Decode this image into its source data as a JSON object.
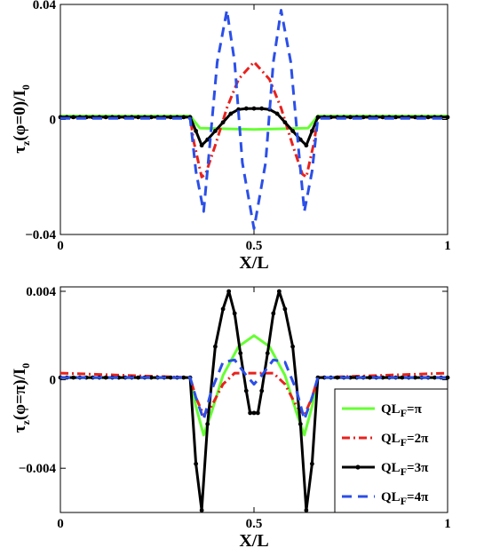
{
  "chart_data": [
    {
      "type": "line",
      "panel": "top",
      "ylabel": {
        "main": "τ",
        "sub1": "z",
        "mid": "(φ=0)/I",
        "sub2": "0"
      },
      "xlabel": "X/L",
      "xlim": [
        0,
        1
      ],
      "ylim": [
        -0.04,
        0.04
      ],
      "xticks": [
        0,
        0.5,
        1
      ],
      "xtick_labels": [
        "0",
        "0.5",
        "1"
      ],
      "yticks": [
        -0.04,
        0,
        0.04
      ],
      "ytick_labels": [
        "−0.04",
        "0",
        "0.04"
      ],
      "grid": false,
      "series": [
        {
          "key": "pi",
          "color": "#66ff33",
          "style": "solid",
          "marker": false,
          "points": [
            [
              0,
              0.0012
            ],
            [
              0.335,
              0.0012
            ],
            [
              0.36,
              -0.003
            ],
            [
              0.5,
              -0.0035
            ],
            [
              0.64,
              -0.003
            ],
            [
              0.665,
              0.0012
            ],
            [
              1,
              0.0012
            ]
          ]
        },
        {
          "key": "2pi",
          "color": "#e8221e",
          "style": "dashdot",
          "marker": false,
          "points": [
            [
              0,
              0.0008
            ],
            [
              0.335,
              0.0008
            ],
            [
              0.345,
              -0.008
            ],
            [
              0.365,
              -0.02
            ],
            [
              0.375,
              -0.019
            ],
            [
              0.4,
              -0.009
            ],
            [
              0.43,
              0.004
            ],
            [
              0.46,
              0.014
            ],
            [
              0.5,
              0.02
            ],
            [
              0.54,
              0.014
            ],
            [
              0.57,
              0.004
            ],
            [
              0.6,
              -0.009
            ],
            [
              0.625,
              -0.019
            ],
            [
              0.635,
              -0.02
            ],
            [
              0.655,
              -0.008
            ],
            [
              0.665,
              0.0008
            ],
            [
              1,
              0.0008
            ]
          ]
        },
        {
          "key": "3pi",
          "color": "#000000",
          "style": "solid",
          "marker": true,
          "points": [
            [
              0,
              0.0008
            ],
            [
              0.335,
              0.0008
            ],
            [
              0.35,
              -0.004
            ],
            [
              0.365,
              -0.009
            ],
            [
              0.38,
              -0.007
            ],
            [
              0.4,
              -0.004
            ],
            [
              0.42,
              -0.001
            ],
            [
              0.44,
              0.002
            ],
            [
              0.46,
              0.0035
            ],
            [
              0.48,
              0.0038
            ],
            [
              0.5,
              0.0038
            ],
            [
              0.52,
              0.0038
            ],
            [
              0.54,
              0.0035
            ],
            [
              0.56,
              0.002
            ],
            [
              0.58,
              -0.001
            ],
            [
              0.6,
              -0.004
            ],
            [
              0.62,
              -0.007
            ],
            [
              0.635,
              -0.009
            ],
            [
              0.65,
              -0.004
            ],
            [
              0.665,
              0.0008
            ],
            [
              1,
              0.0008
            ]
          ]
        },
        {
          "key": "4pi",
          "color": "#2b4fe8",
          "style": "dashed",
          "marker": false,
          "points": [
            [
              0,
              0.0004
            ],
            [
              0.335,
              0.0004
            ],
            [
              0.35,
              -0.018
            ],
            [
              0.37,
              -0.032
            ],
            [
              0.385,
              -0.01
            ],
            [
              0.405,
              0.02
            ],
            [
              0.43,
              0.038
            ],
            [
              0.45,
              0.02
            ],
            [
              0.47,
              -0.015
            ],
            [
              0.5,
              -0.038
            ],
            [
              0.53,
              -0.015
            ],
            [
              0.55,
              0.02
            ],
            [
              0.57,
              0.038
            ],
            [
              0.595,
              0.02
            ],
            [
              0.615,
              -0.01
            ],
            [
              0.63,
              -0.032
            ],
            [
              0.65,
              -0.018
            ],
            [
              0.665,
              0.0004
            ],
            [
              1,
              0.0004
            ]
          ]
        }
      ]
    },
    {
      "type": "line",
      "panel": "bottom",
      "ylabel": {
        "main": "τ",
        "sub1": "z",
        "mid": "(φ=π)/I",
        "sub2": "0"
      },
      "xlabel": "X/L",
      "xlim": [
        0,
        1
      ],
      "ylim": [
        -0.006,
        0.0042
      ],
      "xticks": [
        0,
        0.5,
        1
      ],
      "xtick_labels": [
        "0",
        "0.5",
        "1"
      ],
      "yticks": [
        -0.004,
        0,
        0.004
      ],
      "ytick_labels": [
        "−0.004",
        "0",
        "0.004"
      ],
      "grid": false,
      "legend_position": "lower-right",
      "series": [
        {
          "key": "pi",
          "name_main": "QL",
          "name_sub": "F",
          "name_tail": "=π",
          "color": "#66ff33",
          "style": "solid",
          "marker": false,
          "points": [
            [
              0,
              0.0001
            ],
            [
              0.335,
              0.0001
            ],
            [
              0.35,
              -0.0012
            ],
            [
              0.37,
              -0.0025
            ],
            [
              0.39,
              -0.0015
            ],
            [
              0.42,
              0.0002
            ],
            [
              0.46,
              0.0015
            ],
            [
              0.5,
              0.002
            ],
            [
              0.54,
              0.0015
            ],
            [
              0.58,
              0.0002
            ],
            [
              0.61,
              -0.0015
            ],
            [
              0.63,
              -0.0025
            ],
            [
              0.65,
              -0.0012
            ],
            [
              0.665,
              0.0001
            ],
            [
              1,
              0.0001
            ]
          ]
        },
        {
          "key": "2pi",
          "name_main": "QL",
          "name_sub": "F",
          "name_tail": "=2π",
          "color": "#e8221e",
          "style": "dashdot",
          "marker": false,
          "points": [
            [
              0,
              0.0003
            ],
            [
              0.335,
              0.0001
            ],
            [
              0.35,
              -0.0008
            ],
            [
              0.37,
              -0.0016
            ],
            [
              0.39,
              -0.0012
            ],
            [
              0.42,
              -0.0002
            ],
            [
              0.45,
              0.0003
            ],
            [
              0.5,
              0.0003
            ],
            [
              0.55,
              0.0003
            ],
            [
              0.58,
              -0.0002
            ],
            [
              0.61,
              -0.0012
            ],
            [
              0.63,
              -0.0016
            ],
            [
              0.65,
              -0.0008
            ],
            [
              0.665,
              0.0001
            ],
            [
              1,
              0.0003
            ]
          ]
        },
        {
          "key": "3pi",
          "name_main": "QL",
          "name_sub": "F",
          "name_tail": "=3π",
          "color": "#000000",
          "style": "solid",
          "marker": true,
          "points": [
            [
              0,
              0.0001
            ],
            [
              0.335,
              0.0001
            ],
            [
              0.35,
              -0.0038
            ],
            [
              0.365,
              -0.0059
            ],
            [
              0.38,
              -0.002
            ],
            [
              0.4,
              0.0015
            ],
            [
              0.42,
              0.0032
            ],
            [
              0.435,
              0.004
            ],
            [
              0.45,
              0.003
            ],
            [
              0.465,
              0.0012
            ],
            [
              0.48,
              -0.0005
            ],
            [
              0.49,
              -0.0015
            ],
            [
              0.5,
              -0.0015
            ],
            [
              0.51,
              -0.0015
            ],
            [
              0.52,
              -0.0005
            ],
            [
              0.535,
              0.0012
            ],
            [
              0.55,
              0.003
            ],
            [
              0.565,
              0.004
            ],
            [
              0.58,
              0.0032
            ],
            [
              0.6,
              0.0015
            ],
            [
              0.62,
              -0.002
            ],
            [
              0.635,
              -0.0059
            ],
            [
              0.65,
              -0.0038
            ],
            [
              0.665,
              0.0001
            ],
            [
              1,
              0.0001
            ]
          ]
        },
        {
          "key": "4pi",
          "name_main": "QL",
          "name_sub": "F",
          "name_tail": "=4π",
          "color": "#2b4fe8",
          "style": "dashed",
          "marker": false,
          "points": [
            [
              0,
              0.0001
            ],
            [
              0.335,
              0.0001
            ],
            [
              0.35,
              -0.0008
            ],
            [
              0.37,
              -0.0018
            ],
            [
              0.39,
              -0.0005
            ],
            [
              0.42,
              0.0008
            ],
            [
              0.45,
              0.0009
            ],
            [
              0.48,
              0.0002
            ],
            [
              0.5,
              -0.0002
            ],
            [
              0.52,
              0.0002
            ],
            [
              0.55,
              0.0009
            ],
            [
              0.58,
              0.0008
            ],
            [
              0.61,
              -0.0005
            ],
            [
              0.63,
              -0.0018
            ],
            [
              0.65,
              -0.0008
            ],
            [
              0.665,
              0.0001
            ],
            [
              1,
              0.0001
            ]
          ]
        }
      ]
    }
  ]
}
